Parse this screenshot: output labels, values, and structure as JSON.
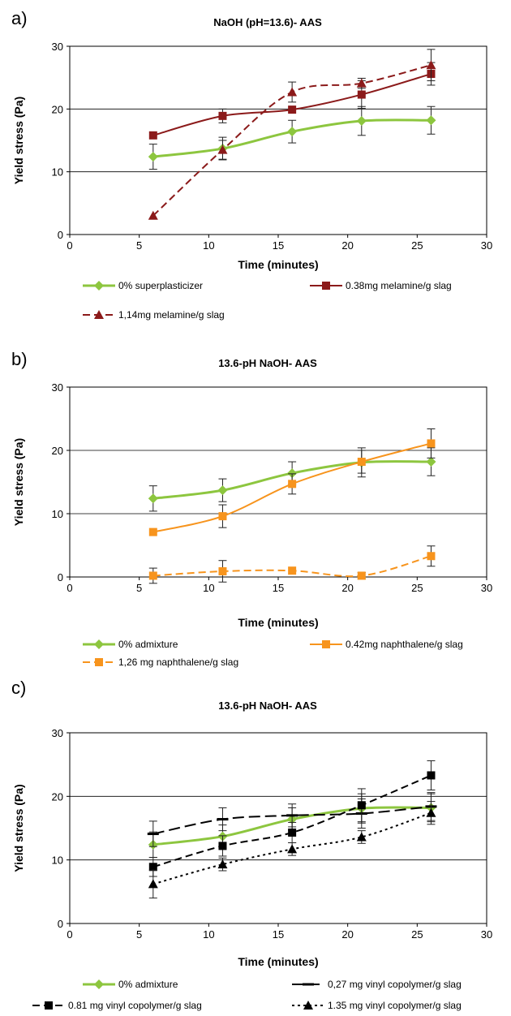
{
  "chart_data": [
    {
      "type": "line",
      "panel_label": "a)",
      "title": "NaOH (pH=13.6)- AAS",
      "xlabel": "Time (minutes)",
      "ylabel": "Yield stress (Pa)",
      "xlim": [
        0,
        30
      ],
      "ylim": [
        0,
        30
      ],
      "x_ticks": [
        0,
        5,
        10,
        15,
        20,
        25,
        30
      ],
      "y_ticks": [
        0,
        10,
        20,
        30
      ],
      "gridlines_y": [
        10,
        20
      ],
      "legend_position": "bottom",
      "series": [
        {
          "name": "0% superplasticizer",
          "color": "#8DC63F",
          "marker": "diamond",
          "dash": "solid",
          "x": [
            6,
            11,
            16,
            21,
            26
          ],
          "y": [
            12.4,
            13.7,
            16.4,
            18.1,
            18.2
          ],
          "err": [
            2.0,
            1.8,
            1.8,
            2.3,
            2.2
          ]
        },
        {
          "name": "0.38mg melamine/g slag",
          "color": "#8B1A1A",
          "marker": "square",
          "dash": "solid",
          "x": [
            6,
            11,
            16,
            21,
            26
          ],
          "y": [
            15.8,
            18.9,
            19.9,
            22.3,
            25.6
          ],
          "err": [
            0,
            1.1,
            0,
            2.2,
            1.8
          ]
        },
        {
          "name": "1,14mg melamine/g slag",
          "color": "#8B1A1A",
          "marker": "triangle",
          "dash": "dashed",
          "x": [
            6,
            11,
            16,
            21,
            26
          ],
          "y": [
            3.0,
            13.5,
            22.7,
            24.1,
            27.0
          ],
          "err": [
            0,
            1.5,
            1.6,
            0.8,
            2.5
          ]
        }
      ]
    },
    {
      "type": "line",
      "panel_label": "b)",
      "title": "13.6-pH NaOH- AAS",
      "xlabel": "Time (minutes)",
      "ylabel": "Yield stress (Pa)",
      "xlim": [
        0,
        30
      ],
      "ylim": [
        0,
        30
      ],
      "x_ticks": [
        0,
        5,
        10,
        15,
        20,
        25,
        30
      ],
      "y_ticks": [
        0,
        10,
        20,
        30
      ],
      "gridlines_y": [
        10,
        20
      ],
      "legend_position": "bottom",
      "series": [
        {
          "name": "0% admixture",
          "color": "#8DC63F",
          "marker": "diamond",
          "dash": "solid",
          "x": [
            6,
            11,
            16,
            21,
            26
          ],
          "y": [
            12.4,
            13.7,
            16.4,
            18.1,
            18.2
          ],
          "err": [
            2.0,
            1.8,
            1.8,
            2.3,
            2.2
          ]
        },
        {
          "name": "0.42mg naphthalene/g slag",
          "color": "#F7941D",
          "marker": "square",
          "dash": "solid",
          "x": [
            6,
            11,
            16,
            21,
            26
          ],
          "y": [
            7.1,
            9.6,
            14.7,
            18.2,
            21.1
          ],
          "err": [
            0,
            1.8,
            1.6,
            1.8,
            2.3
          ]
        },
        {
          "name": "1,26 mg naphthalene/g slag",
          "color": "#F7941D",
          "marker": "square",
          "dash": "dashed",
          "x": [
            6,
            11,
            16,
            21,
            26
          ],
          "y": [
            0.2,
            0.9,
            1.0,
            0.2,
            3.3
          ],
          "err": [
            1.2,
            1.7,
            0,
            0.5,
            1.6
          ]
        }
      ]
    },
    {
      "type": "line",
      "panel_label": "c)",
      "title": "13.6-pH NaOH- AAS",
      "xlabel": "Time (minutes)",
      "ylabel": "Yield stress (Pa)",
      "xlim": [
        0,
        30
      ],
      "ylim": [
        0,
        30
      ],
      "x_ticks": [
        0,
        5,
        10,
        15,
        20,
        25,
        30
      ],
      "y_ticks": [
        0,
        10,
        20,
        30
      ],
      "gridlines_y": [
        10,
        20
      ],
      "legend_position": "bottom",
      "series": [
        {
          "name": "0% admixture",
          "color": "#8DC63F",
          "marker": "diamond",
          "dash": "solid",
          "x": [
            6,
            11,
            16,
            21,
            26
          ],
          "y": [
            12.4,
            13.7,
            16.4,
            18.1,
            18.2
          ],
          "err": [
            2.0,
            1.8,
            1.8,
            2.3,
            2.2
          ]
        },
        {
          "name": "0,27 mg vinyl copolymer/g slag",
          "color": "#000000",
          "marker": "dash",
          "dash": "longdash",
          "x": [
            6,
            11,
            16,
            21,
            26
          ],
          "y": [
            14.1,
            16.4,
            17.0,
            17.3,
            18.4
          ],
          "err": [
            2.0,
            1.8,
            1.8,
            2.3,
            2.2
          ]
        },
        {
          "name": "0.81 mg vinyl copolymer/g slag",
          "color": "#000000",
          "marker": "square",
          "dash": "dashed",
          "x": [
            6,
            11,
            16,
            21,
            26
          ],
          "y": [
            8.9,
            12.2,
            14.3,
            18.6,
            23.3
          ],
          "err": [
            1.5,
            1.6,
            1.6,
            2.6,
            2.3
          ]
        },
        {
          "name": "1.35 mg vinyl copolymer/g slag",
          "color": "#000000",
          "marker": "triangle",
          "dash": "dotted",
          "x": [
            6,
            11,
            16,
            21,
            26
          ],
          "y": [
            6.2,
            9.3,
            11.7,
            13.6,
            17.4
          ],
          "err": [
            2.2,
            1.0,
            1.0,
            1.0,
            1.8
          ]
        }
      ]
    }
  ]
}
